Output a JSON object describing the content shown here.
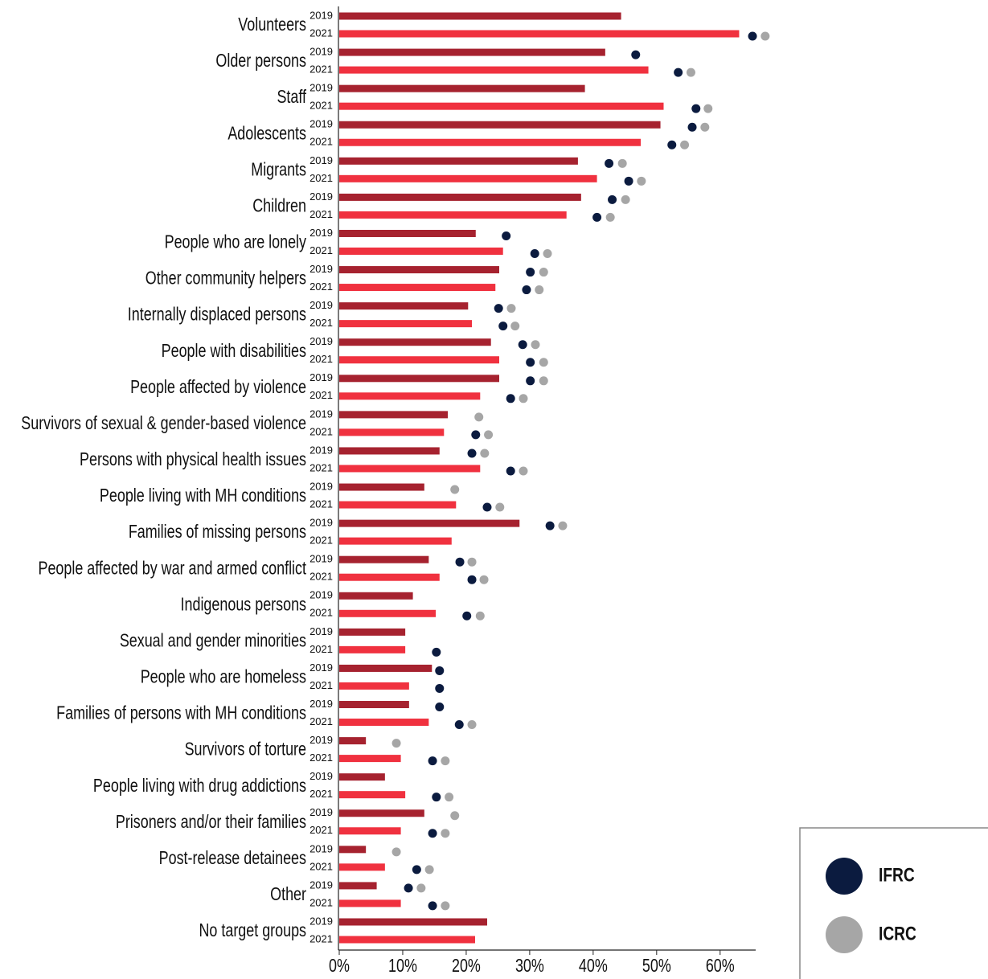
{
  "chart_data": {
    "type": "bar-dot",
    "categories": [
      "Volunteers",
      "Older persons",
      "Staff",
      "Adolescents",
      "Migrants",
      "Children",
      "People who are lonely",
      "Other community helpers",
      "Internally displaced persons",
      "People with disabilities",
      "People affected by violence",
      "Survivors of sexual & gender-based violence",
      "Persons with physical health issues",
      "People living with MH conditions",
      "Families of missing persons",
      "People affected by war and armed conflict",
      "Indigenous persons",
      "Sexual and gender minorities",
      "People who are homeless",
      "Families of persons with MH conditions",
      "Survivors of torture",
      "People living with drug addictions",
      "Prisoners and/or their families",
      "Post-release detainees",
      "Other",
      "No target groups"
    ],
    "series": [
      {
        "name": "2019",
        "color": "#a6222f",
        "values": [
          44.4,
          41.9,
          38.7,
          50.6,
          37.6,
          38.1,
          21.5,
          25.2,
          20.3,
          23.9,
          25.2,
          17.1,
          15.8,
          13.4,
          28.4,
          14.1,
          11.6,
          10.4,
          14.6,
          11.0,
          4.2,
          7.2,
          13.4,
          4.2,
          5.9,
          23.3
        ]
      },
      {
        "name": "2021",
        "color": "#f0313f",
        "values": [
          63.0,
          48.7,
          51.1,
          47.5,
          40.6,
          35.8,
          25.8,
          24.6,
          20.9,
          25.2,
          22.2,
          16.5,
          22.2,
          18.4,
          17.7,
          15.8,
          15.2,
          10.4,
          11.0,
          14.1,
          9.7,
          10.4,
          9.7,
          7.2,
          9.7,
          21.4
        ]
      }
    ],
    "dot_series": [
      {
        "name": "IFRC",
        "color": "#0b1b3f",
        "values": [
          [
            null,
            65.1
          ],
          [
            46.7,
            53.4
          ],
          [
            null,
            56.2
          ],
          [
            55.6,
            52.4
          ],
          [
            42.5,
            45.6
          ],
          [
            43.0,
            40.6
          ],
          [
            26.3,
            30.8
          ],
          [
            30.1,
            29.5
          ],
          [
            25.1,
            25.8
          ],
          [
            28.9,
            30.1
          ],
          [
            30.1,
            27.0
          ],
          [
            null,
            21.5
          ],
          [
            20.9,
            27.0
          ],
          [
            null,
            23.3
          ],
          [
            33.2,
            null
          ],
          [
            19.0,
            20.9
          ],
          [
            null,
            20.1
          ],
          [
            null,
            15.3
          ],
          [
            15.8,
            15.8
          ],
          [
            15.8,
            18.9
          ],
          [
            null,
            14.7
          ],
          [
            null,
            15.3
          ],
          [
            null,
            14.7
          ],
          [
            null,
            12.2
          ],
          [
            10.9,
            14.7
          ],
          [
            null,
            null
          ]
        ]
      },
      {
        "name": "ICRC",
        "color": "#a6a6a6",
        "values": [
          [
            null,
            67.1
          ],
          [
            null,
            55.4
          ],
          [
            null,
            58.1
          ],
          [
            57.6,
            54.4
          ],
          [
            44.6,
            47.6
          ],
          [
            45.1,
            42.7
          ],
          [
            null,
            32.8
          ],
          [
            32.2,
            31.5
          ],
          [
            27.1,
            27.7
          ],
          [
            30.9,
            32.2
          ],
          [
            32.2,
            29.0
          ],
          [
            22.0,
            23.5
          ],
          [
            22.9,
            29.0
          ],
          [
            18.2,
            25.3
          ],
          [
            35.2,
            null
          ],
          [
            20.9,
            22.8
          ],
          [
            null,
            22.2
          ],
          [
            null,
            null
          ],
          [
            null,
            null
          ],
          [
            null,
            20.9
          ],
          [
            9.0,
            16.7
          ],
          [
            null,
            17.3
          ],
          [
            18.2,
            16.7
          ],
          [
            9.0,
            14.2
          ],
          [
            12.9,
            16.7
          ],
          [
            null,
            null
          ]
        ]
      }
    ],
    "xlim": [
      0,
      65.6
    ],
    "xticks": [
      {
        "value": 0,
        "label": "0%"
      },
      {
        "value": 10,
        "label": "10%"
      },
      {
        "value": 20,
        "label": "20%"
      },
      {
        "value": 30,
        "label": "30%"
      },
      {
        "value": 40,
        "label": "40%"
      },
      {
        "value": 50,
        "label": "50%"
      },
      {
        "value": 60,
        "label": "60%"
      }
    ]
  }
}
